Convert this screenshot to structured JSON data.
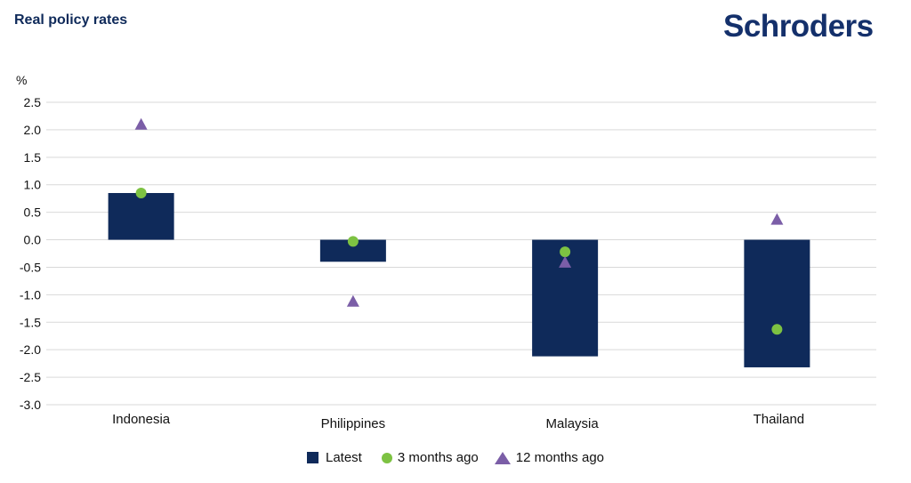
{
  "header": {
    "title": "Real policy rates",
    "logo_text": "Schroders"
  },
  "colors": {
    "latest": "#0f2a5a",
    "three_months": "#7dc242",
    "twelve_months": "#7b5ea7",
    "grid": "#d9d9d9",
    "title": "#0f2a5a"
  },
  "chart_data": {
    "type": "bar",
    "ylabel": "%",
    "ylim": [
      -3.0,
      2.5
    ],
    "yticks": [
      "2.5",
      "2.0",
      "1.5",
      "1.0",
      "0.5",
      "0.0",
      "-0.5",
      "-1.0",
      "-1.5",
      "-2.0",
      "-2.5",
      "-3.0"
    ],
    "categories": [
      "Indonesia",
      "Philippines",
      "Malaysia",
      "Thailand"
    ],
    "grid": true,
    "legend_position": "bottom",
    "series": [
      {
        "name": "Latest",
        "mark": "bar",
        "values": [
          0.85,
          -0.4,
          -2.12,
          -2.32
        ]
      },
      {
        "name": "3 months ago",
        "mark": "dot",
        "values": [
          0.85,
          -0.03,
          -0.22,
          -1.63
        ]
      },
      {
        "name": "12 months ago",
        "mark": "triangle",
        "values": [
          2.1,
          -1.12,
          -0.41,
          0.37
        ]
      }
    ]
  }
}
